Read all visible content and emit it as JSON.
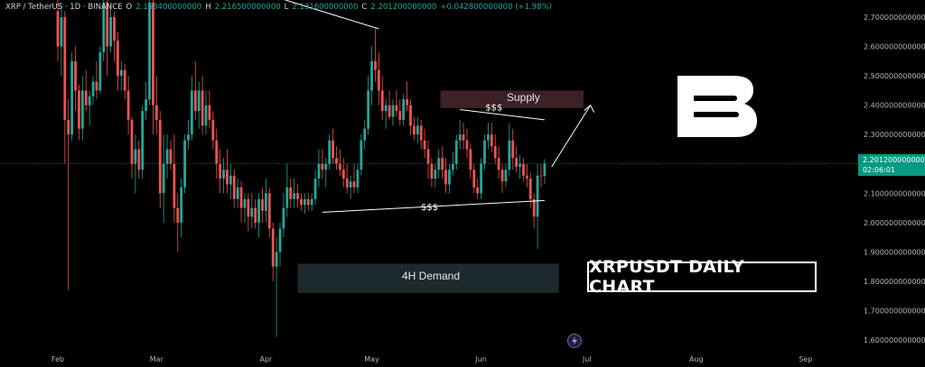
{
  "header": {
    "symbol": "XRP / TetherUS · 1D · BINANCE",
    "open_key": "O",
    "open_value": "2.158400000000",
    "high_key": "H",
    "high_value": "2.216500000000",
    "low_key": "L",
    "low_value": "2.131600000000",
    "close_key": "C",
    "close_value": "2.201200000000",
    "change_value": "+0.042800000000 (+1.98%)"
  },
  "price_tag": {
    "price": "2.201200000000",
    "countdown": "02:06:01"
  },
  "zones": {
    "supply_label": "Supply",
    "demand_label": "4H Demand",
    "liquidity_top_label": "$$$",
    "liquidity_bottom_label": "$$$"
  },
  "overlay_title": "XRPUSDT DAILY CHART",
  "logo_text": "B",
  "colors": {
    "up": "#26a69a",
    "down": "#ef5350",
    "background": "#000000",
    "supply_zone": "#3a2226",
    "demand_zone": "#1c2a2d",
    "price_line": "#089981"
  },
  "chart_data": {
    "type": "candlestick",
    "title": "XRPUSDT DAILY CHART",
    "xlabel": "",
    "ylabel": "",
    "ylim": [
      1.55,
      2.75
    ],
    "y_ticks": [
      "2.700000000000",
      "2.600000000000",
      "2.500000000000",
      "2.400000000000",
      "2.300000000000",
      "2.200000000000",
      "2.100000000000",
      "2.000000000000",
      "1.900000000000",
      "1.800000000000",
      "1.700000000000",
      "1.600000000000"
    ],
    "y_tick_values": [
      2.7,
      2.6,
      2.5,
      2.4,
      2.3,
      2.2,
      2.1,
      2.0,
      1.9,
      1.8,
      1.7,
      1.6
    ],
    "x_ticks": [
      "Feb",
      "Mar",
      "Apr",
      "May",
      "Jun",
      "Jul",
      "Aug",
      "Sep"
    ],
    "x_tick_days": [
      0,
      28,
      59,
      89,
      120,
      150,
      181,
      212
    ],
    "last_price": 2.2012,
    "supply_zone": {
      "low": 2.39,
      "high": 2.45,
      "start_day": 110,
      "end_day": 148
    },
    "demand_zone": {
      "low": 1.76,
      "high": 1.86,
      "start_day": 67,
      "end_day": 140
    },
    "candles": [
      {
        "d": 0,
        "o": 2.72,
        "h": 2.9,
        "l": 2.55,
        "c": 2.6
      },
      {
        "d": 1,
        "o": 2.6,
        "h": 2.75,
        "l": 2.5,
        "c": 2.7
      },
      {
        "d": 2,
        "o": 2.7,
        "h": 2.72,
        "l": 2.2,
        "c": 2.35
      },
      {
        "d": 3,
        "o": 2.35,
        "h": 2.42,
        "l": 1.77,
        "c": 2.3
      },
      {
        "d": 4,
        "o": 2.3,
        "h": 2.58,
        "l": 2.28,
        "c": 2.55
      },
      {
        "d": 5,
        "o": 2.55,
        "h": 2.6,
        "l": 2.38,
        "c": 2.45
      },
      {
        "d": 6,
        "o": 2.45,
        "h": 2.47,
        "l": 2.28,
        "c": 2.32
      },
      {
        "d": 7,
        "o": 2.32,
        "h": 2.5,
        "l": 2.28,
        "c": 2.45
      },
      {
        "d": 8,
        "o": 2.45,
        "h": 2.52,
        "l": 2.38,
        "c": 2.4
      },
      {
        "d": 9,
        "o": 2.4,
        "h": 2.45,
        "l": 2.33,
        "c": 2.43
      },
      {
        "d": 10,
        "o": 2.43,
        "h": 2.5,
        "l": 2.4,
        "c": 2.48
      },
      {
        "d": 11,
        "o": 2.48,
        "h": 2.55,
        "l": 2.42,
        "c": 2.45
      },
      {
        "d": 12,
        "o": 2.45,
        "h": 2.6,
        "l": 2.44,
        "c": 2.58
      },
      {
        "d": 13,
        "o": 2.58,
        "h": 2.8,
        "l": 2.55,
        "c": 2.75
      },
      {
        "d": 14,
        "o": 2.75,
        "h": 2.8,
        "l": 2.5,
        "c": 2.6
      },
      {
        "d": 15,
        "o": 2.6,
        "h": 2.75,
        "l": 2.58,
        "c": 2.7
      },
      {
        "d": 16,
        "o": 2.7,
        "h": 2.72,
        "l": 2.55,
        "c": 2.62
      },
      {
        "d": 17,
        "o": 2.62,
        "h": 2.65,
        "l": 2.45,
        "c": 2.5
      },
      {
        "d": 18,
        "o": 2.5,
        "h": 2.55,
        "l": 2.45,
        "c": 2.52
      },
      {
        "d": 19,
        "o": 2.52,
        "h": 2.54,
        "l": 2.42,
        "c": 2.45
      },
      {
        "d": 20,
        "o": 2.45,
        "h": 2.5,
        "l": 2.3,
        "c": 2.35
      },
      {
        "d": 21,
        "o": 2.35,
        "h": 2.36,
        "l": 2.15,
        "c": 2.2
      },
      {
        "d": 22,
        "o": 2.2,
        "h": 2.3,
        "l": 2.1,
        "c": 2.25
      },
      {
        "d": 23,
        "o": 2.25,
        "h": 2.28,
        "l": 2.15,
        "c": 2.18
      },
      {
        "d": 24,
        "o": 2.18,
        "h": 2.4,
        "l": 2.15,
        "c": 2.38
      },
      {
        "d": 25,
        "o": 2.38,
        "h": 2.48,
        "l": 2.35,
        "c": 2.42
      },
      {
        "d": 26,
        "o": 2.42,
        "h": 2.8,
        "l": 2.4,
        "c": 2.75
      },
      {
        "d": 27,
        "o": 2.75,
        "h": 2.8,
        "l": 2.3,
        "c": 2.4
      },
      {
        "d": 28,
        "o": 2.4,
        "h": 2.5,
        "l": 2.3,
        "c": 2.35
      },
      {
        "d": 29,
        "o": 2.35,
        "h": 2.38,
        "l": 2.05,
        "c": 2.1
      },
      {
        "d": 30,
        "o": 2.1,
        "h": 2.3,
        "l": 2.0,
        "c": 2.2
      },
      {
        "d": 31,
        "o": 2.2,
        "h": 2.3,
        "l": 2.15,
        "c": 2.25
      },
      {
        "d": 32,
        "o": 2.25,
        "h": 2.28,
        "l": 2.18,
        "c": 2.2
      },
      {
        "d": 33,
        "o": 2.2,
        "h": 2.3,
        "l": 2.0,
        "c": 2.05
      },
      {
        "d": 34,
        "o": 2.05,
        "h": 2.1,
        "l": 1.9,
        "c": 2.0
      },
      {
        "d": 35,
        "o": 2.0,
        "h": 2.15,
        "l": 1.95,
        "c": 2.12
      },
      {
        "d": 36,
        "o": 2.12,
        "h": 2.3,
        "l": 2.1,
        "c": 2.28
      },
      {
        "d": 37,
        "o": 2.28,
        "h": 2.35,
        "l": 2.25,
        "c": 2.3
      },
      {
        "d": 38,
        "o": 2.3,
        "h": 2.5,
        "l": 2.28,
        "c": 2.45
      },
      {
        "d": 39,
        "o": 2.45,
        "h": 2.55,
        "l": 2.35,
        "c": 2.38
      },
      {
        "d": 40,
        "o": 2.38,
        "h": 2.48,
        "l": 2.32,
        "c": 2.45
      },
      {
        "d": 41,
        "o": 2.45,
        "h": 2.5,
        "l": 2.3,
        "c": 2.33
      },
      {
        "d": 42,
        "o": 2.33,
        "h": 2.45,
        "l": 2.3,
        "c": 2.4
      },
      {
        "d": 43,
        "o": 2.4,
        "h": 2.45,
        "l": 2.32,
        "c": 2.35
      },
      {
        "d": 44,
        "o": 2.35,
        "h": 2.38,
        "l": 2.25,
        "c": 2.28
      },
      {
        "d": 45,
        "o": 2.28,
        "h": 2.32,
        "l": 2.15,
        "c": 2.2
      },
      {
        "d": 46,
        "o": 2.2,
        "h": 2.25,
        "l": 2.1,
        "c": 2.15
      },
      {
        "d": 47,
        "o": 2.15,
        "h": 2.22,
        "l": 2.1,
        "c": 2.18
      },
      {
        "d": 48,
        "o": 2.18,
        "h": 2.25,
        "l": 2.1,
        "c": 2.13
      },
      {
        "d": 49,
        "o": 2.13,
        "h": 2.2,
        "l": 2.08,
        "c": 2.16
      },
      {
        "d": 50,
        "o": 2.16,
        "h": 2.18,
        "l": 2.05,
        "c": 2.08
      },
      {
        "d": 51,
        "o": 2.08,
        "h": 2.15,
        "l": 2.05,
        "c": 2.12
      },
      {
        "d": 52,
        "o": 2.12,
        "h": 2.14,
        "l": 2.0,
        "c": 2.05
      },
      {
        "d": 53,
        "o": 2.05,
        "h": 2.1,
        "l": 2.0,
        "c": 2.08
      },
      {
        "d": 54,
        "o": 2.08,
        "h": 2.1,
        "l": 1.97,
        "c": 2.02
      },
      {
        "d": 55,
        "o": 2.02,
        "h": 2.1,
        "l": 1.98,
        "c": 2.05
      },
      {
        "d": 56,
        "o": 2.05,
        "h": 2.08,
        "l": 1.98,
        "c": 2.0
      },
      {
        "d": 57,
        "o": 2.0,
        "h": 2.1,
        "l": 1.95,
        "c": 2.08
      },
      {
        "d": 58,
        "o": 2.08,
        "h": 2.12,
        "l": 2.0,
        "c": 2.04
      },
      {
        "d": 59,
        "o": 2.04,
        "h": 2.15,
        "l": 2.0,
        "c": 2.1
      },
      {
        "d": 60,
        "o": 2.1,
        "h": 2.12,
        "l": 1.95,
        "c": 1.98
      },
      {
        "d": 61,
        "o": 1.98,
        "h": 2.0,
        "l": 1.8,
        "c": 1.85
      },
      {
        "d": 62,
        "o": 1.85,
        "h": 1.95,
        "l": 1.61,
        "c": 1.9
      },
      {
        "d": 63,
        "o": 1.9,
        "h": 2.0,
        "l": 1.85,
        "c": 1.98
      },
      {
        "d": 64,
        "o": 1.98,
        "h": 2.1,
        "l": 1.95,
        "c": 2.05
      },
      {
        "d": 65,
        "o": 2.05,
        "h": 2.2,
        "l": 2.02,
        "c": 2.12
      },
      {
        "d": 66,
        "o": 2.12,
        "h": 2.15,
        "l": 2.05,
        "c": 2.08
      },
      {
        "d": 67,
        "o": 2.08,
        "h": 2.15,
        "l": 2.05,
        "c": 2.1
      },
      {
        "d": 68,
        "o": 2.1,
        "h": 2.13,
        "l": 2.05,
        "c": 2.08
      },
      {
        "d": 69,
        "o": 2.08,
        "h": 2.1,
        "l": 2.04,
        "c": 2.06
      },
      {
        "d": 70,
        "o": 2.06,
        "h": 2.1,
        "l": 2.03,
        "c": 2.08
      },
      {
        "d": 71,
        "o": 2.08,
        "h": 2.1,
        "l": 2.04,
        "c": 2.06
      },
      {
        "d": 72,
        "o": 2.06,
        "h": 2.1,
        "l": 2.04,
        "c": 2.08
      },
      {
        "d": 73,
        "o": 2.08,
        "h": 2.18,
        "l": 2.06,
        "c": 2.15
      },
      {
        "d": 74,
        "o": 2.15,
        "h": 2.25,
        "l": 2.12,
        "c": 2.2
      },
      {
        "d": 75,
        "o": 2.2,
        "h": 2.25,
        "l": 2.15,
        "c": 2.18
      },
      {
        "d": 76,
        "o": 2.18,
        "h": 2.22,
        "l": 2.12,
        "c": 2.2
      },
      {
        "d": 77,
        "o": 2.2,
        "h": 2.3,
        "l": 2.18,
        "c": 2.28
      },
      {
        "d": 78,
        "o": 2.28,
        "h": 2.32,
        "l": 2.2,
        "c": 2.22
      },
      {
        "d": 79,
        "o": 2.22,
        "h": 2.26,
        "l": 2.18,
        "c": 2.2
      },
      {
        "d": 80,
        "o": 2.2,
        "h": 2.25,
        "l": 2.16,
        "c": 2.18
      },
      {
        "d": 81,
        "o": 2.18,
        "h": 2.22,
        "l": 2.12,
        "c": 2.15
      },
      {
        "d": 82,
        "o": 2.15,
        "h": 2.2,
        "l": 2.1,
        "c": 2.12
      },
      {
        "d": 83,
        "o": 2.12,
        "h": 2.16,
        "l": 2.08,
        "c": 2.14
      },
      {
        "d": 84,
        "o": 2.14,
        "h": 2.2,
        "l": 2.1,
        "c": 2.12
      },
      {
        "d": 85,
        "o": 2.12,
        "h": 2.2,
        "l": 2.1,
        "c": 2.18
      },
      {
        "d": 86,
        "o": 2.18,
        "h": 2.3,
        "l": 2.16,
        "c": 2.28
      },
      {
        "d": 87,
        "o": 2.28,
        "h": 2.35,
        "l": 2.25,
        "c": 2.32
      },
      {
        "d": 88,
        "o": 2.32,
        "h": 2.5,
        "l": 2.3,
        "c": 2.45
      },
      {
        "d": 89,
        "o": 2.45,
        "h": 2.6,
        "l": 2.4,
        "c": 2.55
      },
      {
        "d": 90,
        "o": 2.55,
        "h": 2.66,
        "l": 2.48,
        "c": 2.52
      },
      {
        "d": 91,
        "o": 2.52,
        "h": 2.58,
        "l": 2.4,
        "c": 2.45
      },
      {
        "d": 92,
        "o": 2.45,
        "h": 2.5,
        "l": 2.35,
        "c": 2.38
      },
      {
        "d": 93,
        "o": 2.38,
        "h": 2.42,
        "l": 2.32,
        "c": 2.4
      },
      {
        "d": 94,
        "o": 2.4,
        "h": 2.45,
        "l": 2.35,
        "c": 2.36
      },
      {
        "d": 95,
        "o": 2.36,
        "h": 2.42,
        "l": 2.33,
        "c": 2.4
      },
      {
        "d": 96,
        "o": 2.4,
        "h": 2.45,
        "l": 2.36,
        "c": 2.38
      },
      {
        "d": 97,
        "o": 2.38,
        "h": 2.42,
        "l": 2.33,
        "c": 2.35
      },
      {
        "d": 98,
        "o": 2.35,
        "h": 2.44,
        "l": 2.33,
        "c": 2.42
      },
      {
        "d": 99,
        "o": 2.42,
        "h": 2.48,
        "l": 2.38,
        "c": 2.4
      },
      {
        "d": 100,
        "o": 2.4,
        "h": 2.42,
        "l": 2.3,
        "c": 2.33
      },
      {
        "d": 101,
        "o": 2.33,
        "h": 2.36,
        "l": 2.28,
        "c": 2.3
      },
      {
        "d": 102,
        "o": 2.3,
        "h": 2.36,
        "l": 2.27,
        "c": 2.33
      },
      {
        "d": 103,
        "o": 2.33,
        "h": 2.35,
        "l": 2.25,
        "c": 2.28
      },
      {
        "d": 104,
        "o": 2.28,
        "h": 2.32,
        "l": 2.22,
        "c": 2.25
      },
      {
        "d": 105,
        "o": 2.25,
        "h": 2.28,
        "l": 2.15,
        "c": 2.2
      },
      {
        "d": 106,
        "o": 2.2,
        "h": 2.22,
        "l": 2.12,
        "c": 2.15
      },
      {
        "d": 107,
        "o": 2.15,
        "h": 2.2,
        "l": 2.12,
        "c": 2.18
      },
      {
        "d": 108,
        "o": 2.18,
        "h": 2.25,
        "l": 2.15,
        "c": 2.22
      },
      {
        "d": 109,
        "o": 2.22,
        "h": 2.26,
        "l": 2.15,
        "c": 2.18
      },
      {
        "d": 110,
        "o": 2.18,
        "h": 2.22,
        "l": 2.1,
        "c": 2.13
      },
      {
        "d": 111,
        "o": 2.13,
        "h": 2.2,
        "l": 2.1,
        "c": 2.18
      },
      {
        "d": 112,
        "o": 2.18,
        "h": 2.24,
        "l": 2.16,
        "c": 2.2
      },
      {
        "d": 113,
        "o": 2.2,
        "h": 2.3,
        "l": 2.18,
        "c": 2.28
      },
      {
        "d": 114,
        "o": 2.28,
        "h": 2.35,
        "l": 2.25,
        "c": 2.3
      },
      {
        "d": 115,
        "o": 2.3,
        "h": 2.34,
        "l": 2.25,
        "c": 2.28
      },
      {
        "d": 116,
        "o": 2.28,
        "h": 2.32,
        "l": 2.22,
        "c": 2.25
      },
      {
        "d": 117,
        "o": 2.25,
        "h": 2.27,
        "l": 2.15,
        "c": 2.18
      },
      {
        "d": 118,
        "o": 2.18,
        "h": 2.2,
        "l": 2.1,
        "c": 2.12
      },
      {
        "d": 119,
        "o": 2.12,
        "h": 2.15,
        "l": 2.08,
        "c": 2.1
      },
      {
        "d": 120,
        "o": 2.1,
        "h": 2.22,
        "l": 2.08,
        "c": 2.2
      },
      {
        "d": 121,
        "o": 2.2,
        "h": 2.3,
        "l": 2.18,
        "c": 2.28
      },
      {
        "d": 122,
        "o": 2.28,
        "h": 2.34,
        "l": 2.25,
        "c": 2.3
      },
      {
        "d": 123,
        "o": 2.3,
        "h": 2.34,
        "l": 2.24,
        "c": 2.26
      },
      {
        "d": 124,
        "o": 2.26,
        "h": 2.3,
        "l": 2.2,
        "c": 2.22
      },
      {
        "d": 125,
        "o": 2.22,
        "h": 2.26,
        "l": 2.15,
        "c": 2.18
      },
      {
        "d": 126,
        "o": 2.18,
        "h": 2.2,
        "l": 2.1,
        "c": 2.14
      },
      {
        "d": 127,
        "o": 2.14,
        "h": 2.2,
        "l": 2.12,
        "c": 2.18
      },
      {
        "d": 128,
        "o": 2.18,
        "h": 2.34,
        "l": 2.16,
        "c": 2.28
      },
      {
        "d": 129,
        "o": 2.28,
        "h": 2.32,
        "l": 2.18,
        "c": 2.22
      },
      {
        "d": 130,
        "o": 2.22,
        "h": 2.26,
        "l": 2.17,
        "c": 2.19
      },
      {
        "d": 131,
        "o": 2.19,
        "h": 2.23,
        "l": 2.15,
        "c": 2.2
      },
      {
        "d": 132,
        "o": 2.2,
        "h": 2.22,
        "l": 2.14,
        "c": 2.16
      },
      {
        "d": 133,
        "o": 2.16,
        "h": 2.2,
        "l": 2.12,
        "c": 2.15
      },
      {
        "d": 134,
        "o": 2.15,
        "h": 2.17,
        "l": 2.05,
        "c": 2.08
      },
      {
        "d": 135,
        "o": 2.08,
        "h": 2.1,
        "l": 1.98,
        "c": 2.02
      },
      {
        "d": 136,
        "o": 2.02,
        "h": 2.2,
        "l": 1.91,
        "c": 2.16
      },
      {
        "d": 137,
        "o": 2.16,
        "h": 2.2,
        "l": 2.12,
        "c": 2.158
      },
      {
        "d": 138,
        "o": 2.1584,
        "h": 2.2165,
        "l": 2.1316,
        "c": 2.2012
      }
    ]
  }
}
